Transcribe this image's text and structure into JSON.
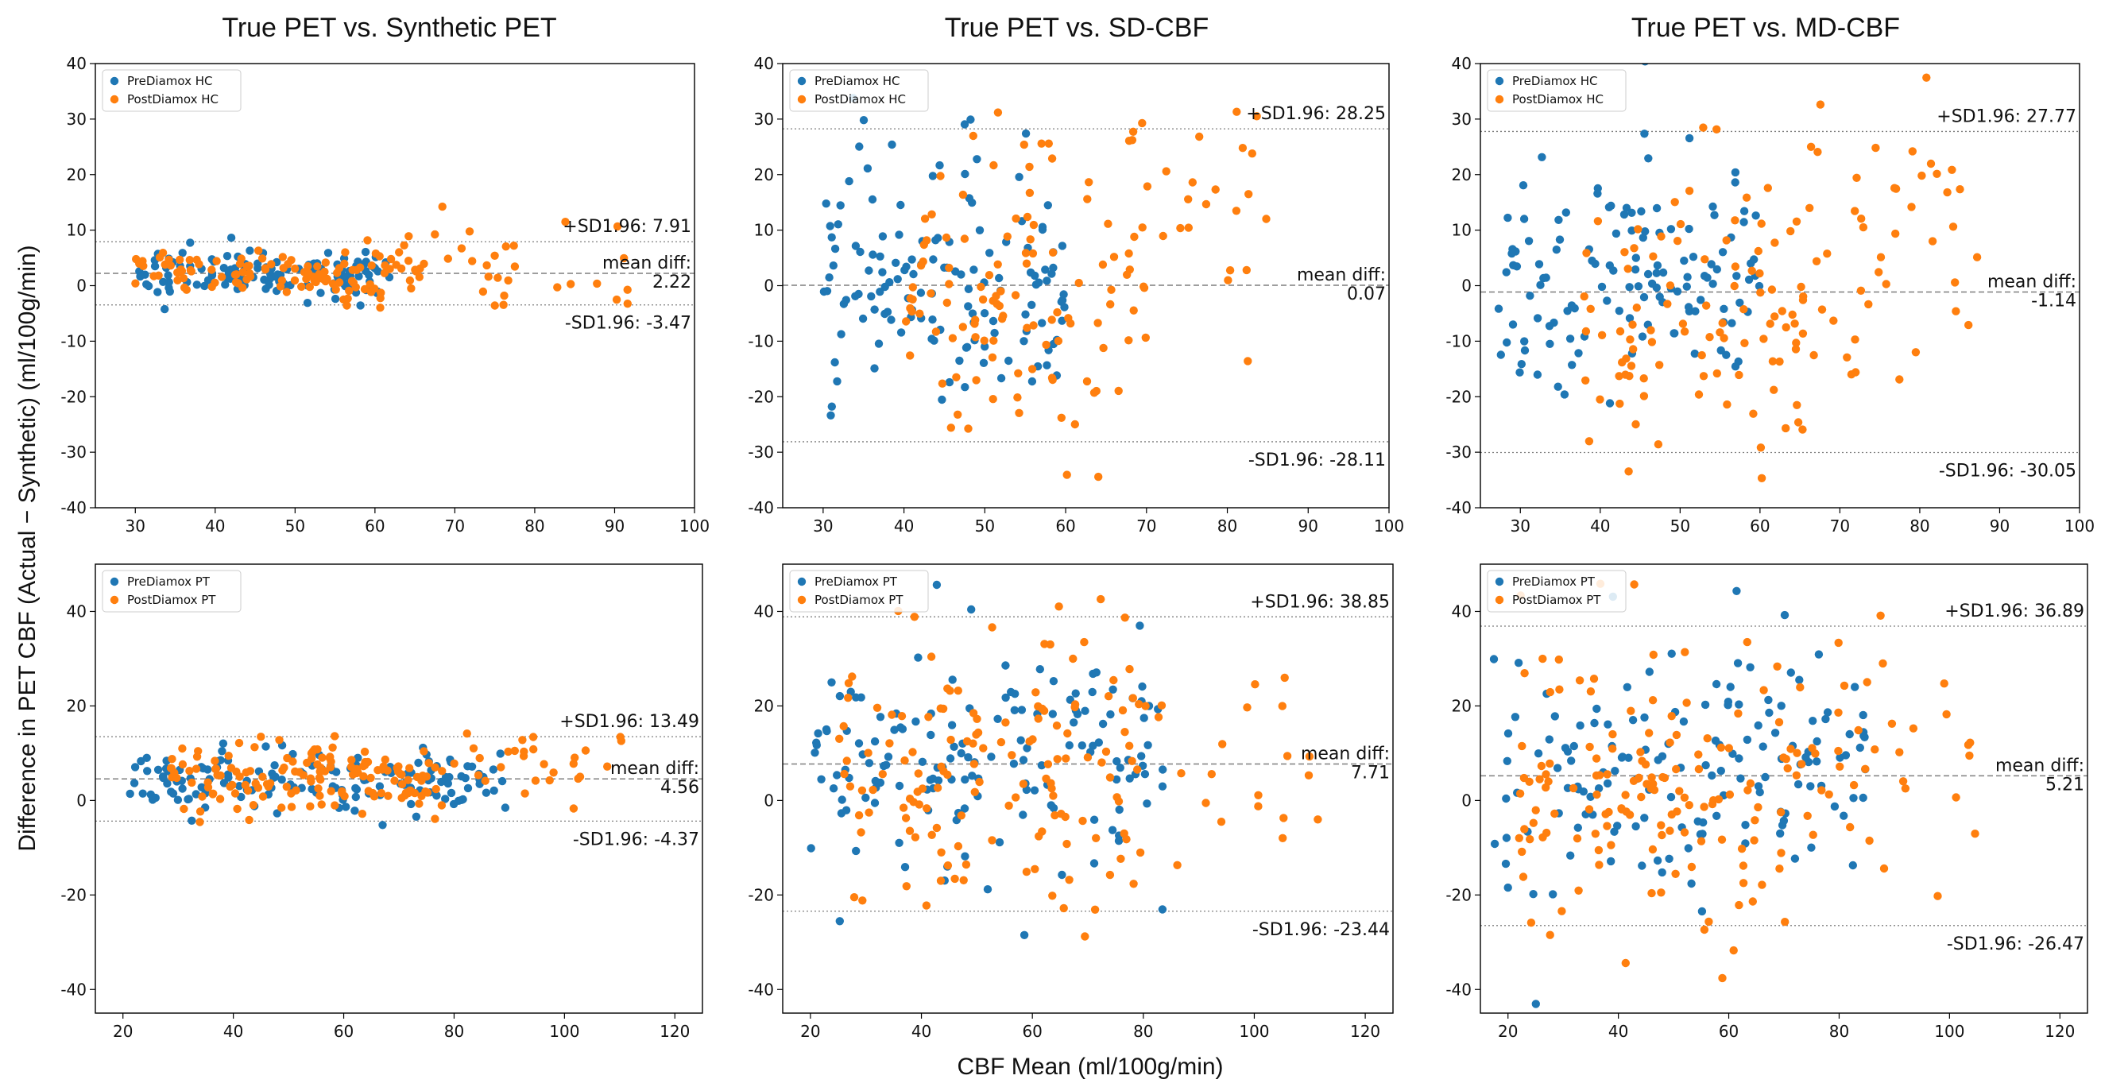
{
  "figure": {
    "xlabel": "CBF Mean (ml/100g/min)",
    "ylabel": "Difference in PET CBF (Actual − Synthetic) (ml/100g/min)",
    "column_titles": [
      "True PET vs. Synthetic PET",
      "True PET vs. SD-CBF",
      "True PET vs. MD-CBF"
    ]
  },
  "colors": {
    "pre": "#1f77b4",
    "post": "#ff7f0e",
    "line": "#7f7f7f",
    "axis": "#000000"
  },
  "chart_data": [
    {
      "type": "scatter",
      "id": "hc-synthetic",
      "column": 0,
      "xlim": [
        25,
        100
      ],
      "ylim": [
        -40,
        40
      ],
      "xticks": [
        30,
        40,
        50,
        60,
        70,
        80,
        90,
        100
      ],
      "yticks": [
        -40,
        -30,
        -20,
        -10,
        0,
        10,
        20,
        30,
        40
      ],
      "legend": [
        "PreDiamox HC",
        "PostDiamox HC"
      ],
      "mean_diff": 2.22,
      "upper_loa": 7.91,
      "lower_loa": -3.47,
      "labels": {
        "upper": "+SD1.96: 7.91",
        "mean": "mean diff:",
        "mean_value": "2.22",
        "lower": "-SD1.96: -3.47"
      },
      "clusters": {
        "pre": [
          [
            30,
            62,
            2,
            2.2,
            130
          ]
        ],
        "post": [
          [
            30,
            66,
            2.5,
            2.5,
            120
          ],
          [
            66,
            92,
            3,
            5.5,
            28
          ]
        ]
      }
    },
    {
      "type": "scatter",
      "id": "hc-sd",
      "column": 1,
      "xlim": [
        25,
        100
      ],
      "ylim": [
        -40,
        40
      ],
      "xticks": [
        30,
        40,
        50,
        60,
        70,
        80,
        90,
        100
      ],
      "yticks": [
        -40,
        -30,
        -20,
        -10,
        0,
        10,
        20,
        30,
        40
      ],
      "legend": [
        "PreDiamox HC",
        "PostDiamox HC"
      ],
      "mean_diff": 0.07,
      "upper_loa": 28.25,
      "lower_loa": -28.11,
      "labels": {
        "upper": "+SD1.96: 28.25",
        "mean": "mean diff:",
        "mean_value": "0.07",
        "lower": "-SD1.96: -28.11"
      },
      "clusters": {
        "pre": [
          [
            30,
            60,
            0,
            11,
            140
          ]
        ],
        "post": [
          [
            40,
            70,
            -3,
            15,
            110
          ],
          [
            65,
            85,
            14,
            12,
            28
          ]
        ]
      }
    },
    {
      "type": "scatter",
      "id": "hc-md",
      "column": 2,
      "xlim": [
        25,
        100
      ],
      "ylim": [
        -40,
        40
      ],
      "xticks": [
        30,
        40,
        50,
        60,
        70,
        80,
        90,
        100
      ],
      "yticks": [
        -40,
        -30,
        -20,
        -10,
        0,
        10,
        20,
        30,
        40
      ],
      "legend": [
        "PreDiamox HC",
        "PostDiamox HC"
      ],
      "mean_diff": -1.14,
      "upper_loa": 27.77,
      "lower_loa": -30.05,
      "labels": {
        "upper": "+SD1.96: 27.77",
        "mean": "mean diff:",
        "mean_value": "-1.14",
        "lower": "-SD1.96: -30.05"
      },
      "clusters": {
        "pre": [
          [
            27,
            60,
            0,
            11,
            130
          ]
        ],
        "post": [
          [
            38,
            72,
            -5,
            15,
            110
          ],
          [
            70,
            88,
            10,
            12,
            30
          ]
        ]
      }
    },
    {
      "type": "scatter",
      "id": "pt-synthetic",
      "column": 0,
      "xlim": [
        15,
        125
      ],
      "ylim": [
        -45,
        50
      ],
      "xticks": [
        20,
        40,
        60,
        80,
        100,
        120
      ],
      "yticks": [
        -40,
        -20,
        0,
        20,
        40
      ],
      "legend": [
        "PreDiamox PT",
        "PostDiamox PT"
      ],
      "mean_diff": 4.56,
      "upper_loa": 13.49,
      "lower_loa": -4.37,
      "labels": {
        "upper": "+SD1.96: 13.49",
        "mean": "mean diff:",
        "mean_value": "4.56",
        "lower": "-SD1.96: -4.37"
      },
      "clusters": {
        "pre": [
          [
            20,
            90,
            4,
            3.5,
            150
          ]
        ],
        "post": [
          [
            28,
            78,
            4.5,
            4,
            150
          ],
          [
            78,
            112,
            9,
            4.5,
            28
          ]
        ]
      }
    },
    {
      "type": "scatter",
      "id": "pt-sd",
      "column": 1,
      "xlim": [
        15,
        125
      ],
      "ylim": [
        -45,
        50
      ],
      "xticks": [
        20,
        40,
        60,
        80,
        100,
        120
      ],
      "yticks": [
        -40,
        -20,
        0,
        20,
        40
      ],
      "legend": [
        "PreDiamox PT",
        "PostDiamox PT"
      ],
      "mean_diff": 7.71,
      "upper_loa": 38.85,
      "lower_loa": -23.44,
      "labels": {
        "upper": "+SD1.96: 38.85",
        "mean": "mean diff:",
        "mean_value": "7.71",
        "lower": "-SD1.96: -23.44"
      },
      "clusters": {
        "pre": [
          [
            20,
            85,
            9,
            12,
            150
          ]
        ],
        "post": [
          [
            25,
            80,
            6,
            15,
            140
          ],
          [
            80,
            114,
            12,
            16,
            22
          ]
        ]
      }
    },
    {
      "type": "scatter",
      "id": "pt-md",
      "column": 2,
      "xlim": [
        15,
        125
      ],
      "ylim": [
        -45,
        50
      ],
      "xticks": [
        20,
        40,
        60,
        80,
        100,
        120
      ],
      "yticks": [
        -40,
        -20,
        0,
        20,
        40
      ],
      "legend": [
        "PreDiamox PT",
        "PostDiamox PT"
      ],
      "mean_diff": 5.21,
      "upper_loa": 36.89,
      "lower_loa": -26.47,
      "labels": {
        "upper": "+SD1.96: 36.89",
        "mean": "mean diff:",
        "mean_value": "5.21",
        "lower": "-SD1.96: -26.47"
      },
      "clusters": {
        "pre": [
          [
            17,
            85,
            4,
            14,
            150
          ]
        ],
        "post": [
          [
            22,
            80,
            3,
            15,
            150
          ],
          [
            80,
            105,
            13,
            14,
            25
          ]
        ]
      }
    }
  ]
}
